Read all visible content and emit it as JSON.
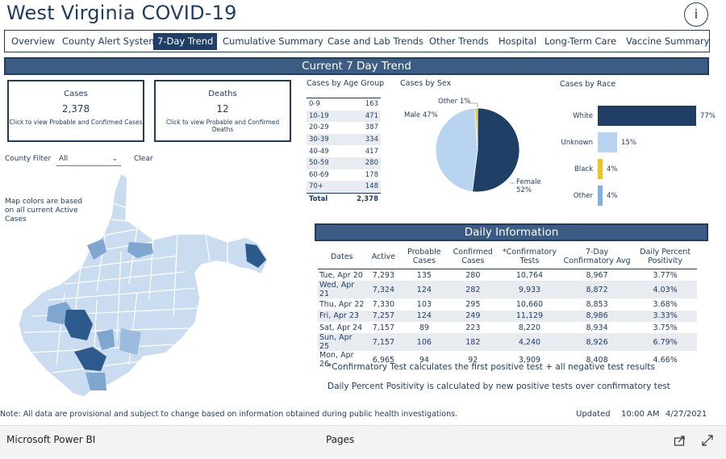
{
  "header": {
    "title": "West Virginia COVID-19",
    "info_icon": "i"
  },
  "tabs": [
    {
      "label": "Overview",
      "active": false
    },
    {
      "label": "County Alert System",
      "active": false
    },
    {
      "label": "7-Day Trend",
      "active": true
    },
    {
      "label": "Cumulative Summary",
      "active": false
    },
    {
      "label": "Case and Lab Trends",
      "active": false
    },
    {
      "label": "Other Trends",
      "active": false
    },
    {
      "label": "Hospital",
      "active": false
    },
    {
      "label": "Long-Term Care",
      "active": false
    },
    {
      "label": "Vaccine Summary",
      "active": false
    }
  ],
  "banner": "Current 7 Day Trend",
  "cards": {
    "cases": {
      "label": "Cases",
      "value": "2,378",
      "hint": "Click to view Probable and Confirmed Cases"
    },
    "deaths": {
      "label": "Deaths",
      "value": "12",
      "hint": "Click to view Probable and Confirmed Deaths"
    }
  },
  "filter": {
    "label": "County Filter",
    "value": "All",
    "clear": "Clear"
  },
  "map_note": "Map colors are based on all current Active Cases",
  "age": {
    "title": "Cases by Age Group",
    "rows": [
      {
        "group": "0-9",
        "value": "163"
      },
      {
        "group": "10-19",
        "value": "471"
      },
      {
        "group": "20-29",
        "value": "387"
      },
      {
        "group": "30-39",
        "value": "334"
      },
      {
        "group": "40-49",
        "value": "417"
      },
      {
        "group": "50-59",
        "value": "280"
      },
      {
        "group": "60-69",
        "value": "178"
      },
      {
        "group": "70+",
        "value": "148"
      }
    ],
    "total_label": "Total",
    "total_value": "2,378"
  },
  "sex": {
    "title": "Cases by Sex",
    "slices": [
      {
        "label": "Female",
        "pct": 52,
        "color": "#1f3f66"
      },
      {
        "label": "Male",
        "pct": 47,
        "color": "#b8d4f0"
      },
      {
        "label": "Other",
        "pct": 1,
        "color": "#f0c419"
      }
    ],
    "female_label": "Female",
    "female_pct": "52%",
    "male_text": "Male 47%",
    "other_text": "Other 1%"
  },
  "race": {
    "title": "Cases by Race",
    "bars": [
      {
        "label": "White",
        "value": 77,
        "text": "77%",
        "color": "#1f3f66"
      },
      {
        "label": "Unknown",
        "value": 15,
        "text": "15%",
        "color": "#b8d4f0"
      },
      {
        "label": "Black",
        "value": 4,
        "text": "4%",
        "color": "#f0c419"
      },
      {
        "label": "Other",
        "value": 4,
        "text": "4%",
        "color": "#7fb0e0"
      }
    ]
  },
  "daily": {
    "title": "Daily Information",
    "columns": [
      "Dates",
      "Active",
      "Probable Cases",
      "Confirmed Cases",
      "*Confirmatory Tests",
      "7-Day Confirmatory Avg",
      "Daily Percent Positivity"
    ],
    "rows": [
      [
        "Tue, Apr 20",
        "7,293",
        "135",
        "280",
        "10,764",
        "8,967",
        "3.77%"
      ],
      [
        "Wed, Apr 21",
        "7,324",
        "124",
        "282",
        "9,933",
        "8,872",
        "4.03%"
      ],
      [
        "Thu, Apr 22",
        "7,330",
        "103",
        "295",
        "10,660",
        "8,853",
        "3.68%"
      ],
      [
        "Fri, Apr 23",
        "7,257",
        "124",
        "249",
        "11,129",
        "8,986",
        "3.33%"
      ],
      [
        "Sat, Apr 24",
        "7,157",
        "89",
        "223",
        "8,220",
        "8,934",
        "3.75%"
      ],
      [
        "Sun, Apr 25",
        "7,157",
        "106",
        "182",
        "4,240",
        "8,926",
        "6.79%"
      ],
      [
        "Mon, Apr 26",
        "6,965",
        "94",
        "92",
        "3,909",
        "8,408",
        "4.66%"
      ]
    ],
    "note1": "*Confirmatory Test calculates the first positive test + all negative test results",
    "note2": "Daily Percent Positivity is calculated by new positive tests over confirmatory test"
  },
  "footer_note": "Note: All data are provisional and subject to change based on information obtained during public health investigations.",
  "updated": {
    "label": "Updated",
    "time": "10:00 AM",
    "date": "4/27/2021"
  },
  "footer": {
    "brand": "Microsoft Power BI",
    "pages": "Pages",
    "share_icon": "share-icon",
    "expand_icon": "expand-icon"
  },
  "colors": {
    "navy": "#1e3d63",
    "banner": "#3d5c84",
    "map_light": "#c9dcf0",
    "map_mid": "#7fa6cf",
    "map_dark": "#2c5a8c"
  }
}
